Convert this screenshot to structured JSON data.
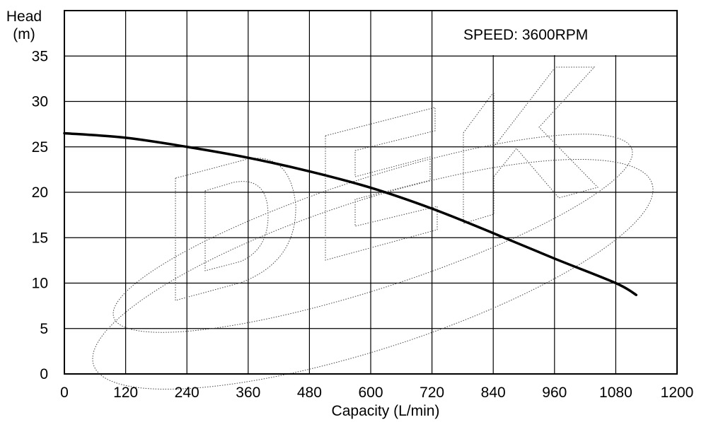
{
  "chart_data": {
    "type": "line",
    "annotation": "SPEED: 3600RPM",
    "xlabel": "Capacity (L/min)",
    "ylabel_line1": "Head",
    "ylabel_line2": "(m)",
    "xlim": [
      0,
      1200
    ],
    "ylim": [
      0,
      40
    ],
    "x_ticks": [
      0,
      120,
      240,
      360,
      480,
      600,
      720,
      840,
      960,
      1080,
      1200
    ],
    "y_ticks": [
      0,
      5,
      10,
      15,
      20,
      25,
      30,
      35
    ],
    "grid": true,
    "watermark": "DEK",
    "series": [
      {
        "x": [
          0,
          120,
          240,
          360,
          480,
          600,
          720,
          840,
          960,
          1080,
          1120
        ],
        "y": [
          26.5,
          26.0,
          25.0,
          23.8,
          22.3,
          20.5,
          18.2,
          15.5,
          12.7,
          10.0,
          8.7
        ]
      }
    ]
  }
}
